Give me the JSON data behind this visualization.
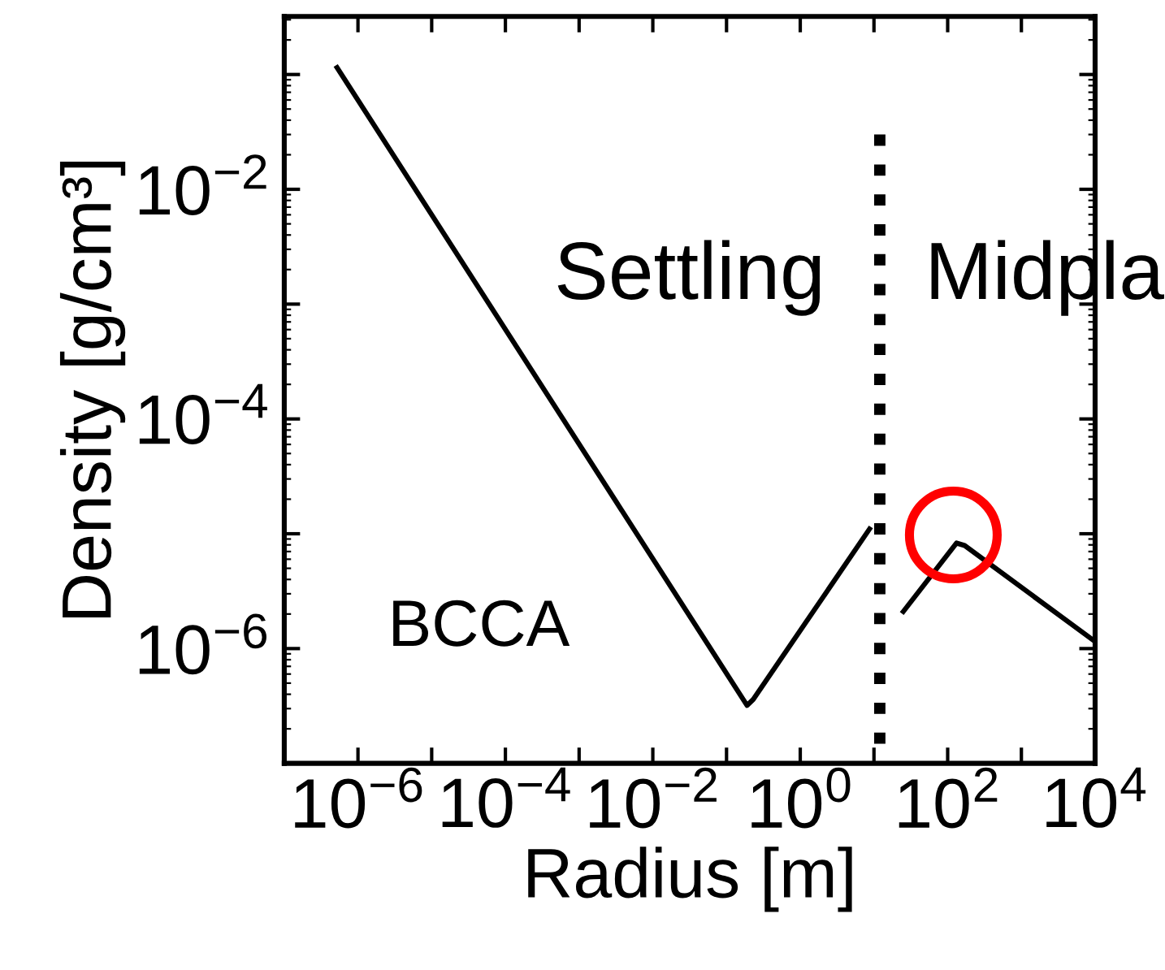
{
  "chart_data": {
    "type": "line",
    "xlabel": "Radius [m]",
    "ylabel": "Density [g/cm³]",
    "log": "xy",
    "xlim": [
      1e-07,
      10000.0
    ],
    "ylim": [
      1e-07,
      0.32
    ],
    "xticks": [
      {
        "value": 1e-06,
        "label": "10$^{−6}$"
      },
      {
        "value": 1e-05,
        "label": null
      },
      {
        "value": 0.0001,
        "label": "10$^{−4}$"
      },
      {
        "value": 0.001,
        "label": null
      },
      {
        "value": 0.01,
        "label": "10$^{−2}$"
      },
      {
        "value": 0.1,
        "label": null
      },
      {
        "value": 1,
        "label": "10$^{0}$"
      },
      {
        "value": 10,
        "label": null
      },
      {
        "value": 100,
        "label": "10$^{2}$"
      },
      {
        "value": 1000,
        "label": null
      },
      {
        "value": 10000,
        "label": "10$^{4}$"
      }
    ],
    "yticks": [
      {
        "value": 1e-06,
        "label": "10$^{−6}$"
      },
      {
        "value": 1e-05,
        "label": null
      },
      {
        "value": 0.0001,
        "label": "10$^{−4}$"
      },
      {
        "value": 0.001,
        "label": null
      },
      {
        "value": 0.01,
        "label": "10$^{−2}$"
      },
      {
        "value": 0.1,
        "label": null
      }
    ],
    "series": [
      {
        "color": "#000000",
        "x": [
          5.2e-07,
          0.19,
          0.23,
          8.7
        ],
        "values": [
          0.115,
          3.2e-07,
          3.6e-07,
          1.1e-05
        ]
      },
      {
        "color": "#000000",
        "x": [
          25,
          132,
          170,
          10000
        ],
        "values": [
          2.1e-06,
          8.3e-06,
          7.9e-06,
          1.15e-06
        ]
      },
      {
        "color": "#000000",
        "line_style": "dotted",
        "x": [
          12,
          12
        ],
        "values": [
          0.03,
          1e-07
        ]
      }
    ],
    "annotations": [
      "Settling",
      "Midpla",
      "BCCA"
    ],
    "grid": false,
    "legend": false
  }
}
